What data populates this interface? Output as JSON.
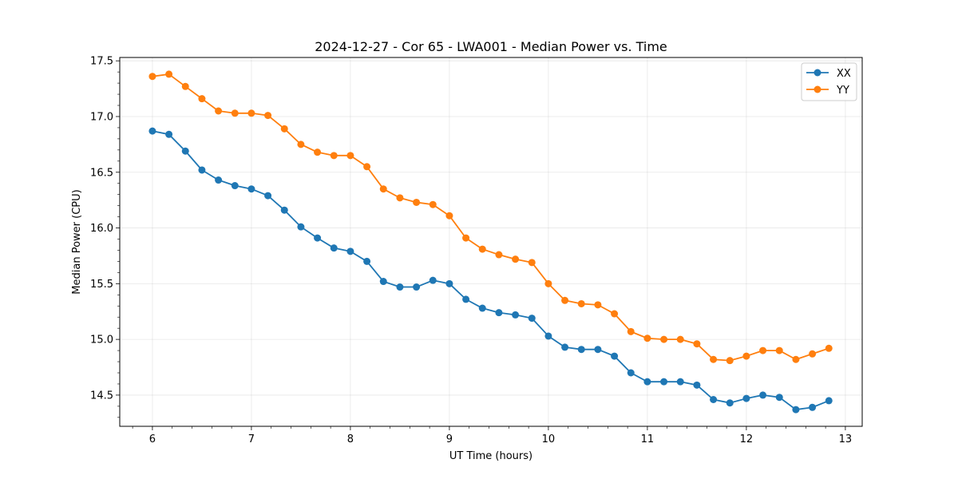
{
  "chart_data": {
    "type": "line",
    "title": "2024-12-27 - Cor 65 - LWA001 - Median Power vs. Time",
    "xlabel": "UT Time (hours)",
    "ylabel": "Median Power (CPU)",
    "xlim": [
      5.67,
      13.17
    ],
    "ylim": [
      14.22,
      17.53
    ],
    "xticks": [
      6,
      7,
      8,
      9,
      10,
      11,
      12,
      13
    ],
    "yticks": [
      14.5,
      15.0,
      15.5,
      16.0,
      16.5,
      17.0,
      17.5
    ],
    "xtick_labels": [
      "6",
      "7",
      "8",
      "9",
      "10",
      "11",
      "12",
      "13"
    ],
    "ytick_labels": [
      "14.5",
      "15.0",
      "15.5",
      "16.0",
      "16.5",
      "17.0",
      "17.5"
    ],
    "grid": true,
    "legend_position": "top-right",
    "x": [
      6.0,
      6.1667,
      6.3333,
      6.5,
      6.6667,
      6.8333,
      7.0,
      7.1667,
      7.3333,
      7.5,
      7.6667,
      7.8333,
      8.0,
      8.1667,
      8.3333,
      8.5,
      8.6667,
      8.8333,
      9.0,
      9.1667,
      9.3333,
      9.5,
      9.6667,
      9.8333,
      10.0,
      10.1667,
      10.3333,
      10.5,
      10.6667,
      10.8333,
      11.0,
      11.1667,
      11.3333,
      11.5,
      11.6667,
      11.8333,
      12.0,
      12.1667,
      12.3333,
      12.5,
      12.6667,
      12.8333
    ],
    "series": [
      {
        "name": "XX",
        "color": "#1f77b4",
        "values": [
          16.87,
          16.84,
          16.69,
          16.52,
          16.43,
          16.38,
          16.35,
          16.29,
          16.16,
          16.01,
          15.91,
          15.82,
          15.79,
          15.7,
          15.52,
          15.47,
          15.47,
          15.53,
          15.5,
          15.36,
          15.28,
          15.24,
          15.22,
          15.19,
          15.03,
          14.93,
          14.91,
          14.91,
          14.85,
          14.7,
          14.62,
          14.62,
          14.62,
          14.59,
          14.46,
          14.43,
          14.47,
          14.5,
          14.48,
          14.37,
          14.39,
          14.45
        ]
      },
      {
        "name": "YY",
        "color": "#ff7f0e",
        "values": [
          17.36,
          17.38,
          17.27,
          17.16,
          17.05,
          17.03,
          17.03,
          17.01,
          16.89,
          16.75,
          16.68,
          16.65,
          16.65,
          16.55,
          16.35,
          16.27,
          16.23,
          16.21,
          16.11,
          15.91,
          15.81,
          15.76,
          15.72,
          15.69,
          15.5,
          15.35,
          15.32,
          15.31,
          15.23,
          15.07,
          15.01,
          15.0,
          15.0,
          14.96,
          14.82,
          14.81,
          14.85,
          14.9,
          14.9,
          14.82,
          14.87,
          14.92
        ]
      }
    ]
  }
}
